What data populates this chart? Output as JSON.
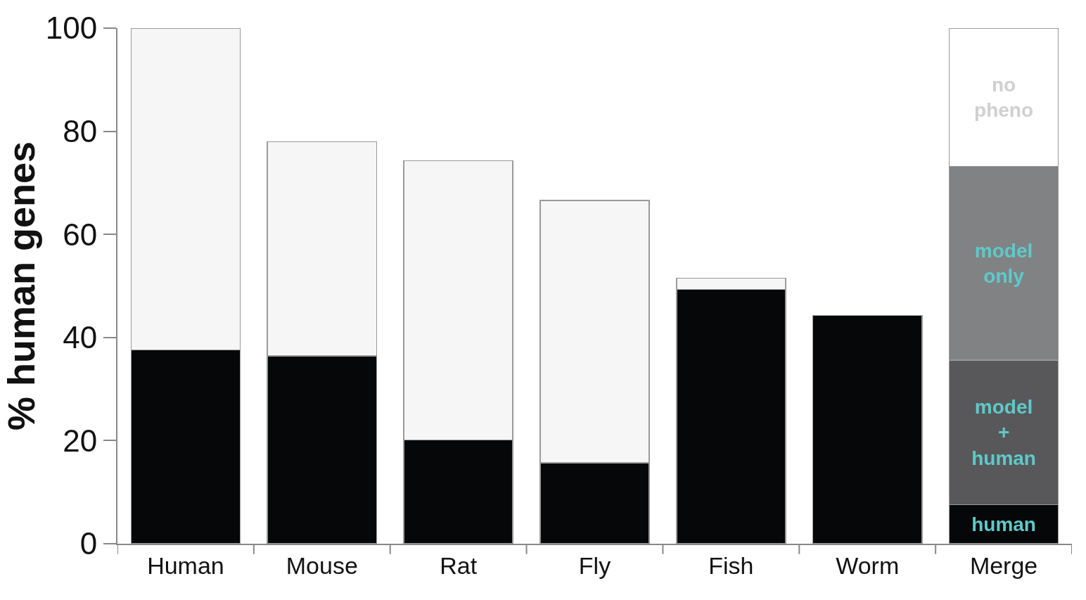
{
  "chart_data": {
    "type": "bar",
    "stacked": true,
    "ylabel": "% human genes",
    "categories": [
      "Human",
      "Mouse",
      "Rat",
      "Fly",
      "Fish",
      "Worm",
      "Merge"
    ],
    "series": [
      {
        "color": "#050708",
        "values": [
          37.6,
          36.4,
          20.1,
          15.7,
          49.3,
          44.3,
          null
        ]
      },
      {
        "color": "#f5f6f5",
        "values": [
          62.4,
          41.6,
          54.2,
          50.9,
          2.2,
          null,
          null
        ]
      },
      {
        "name": "human",
        "color": "#050708",
        "values": [
          null,
          null,
          null,
          null,
          null,
          null,
          7.6
        ]
      },
      {
        "name": "model + human",
        "color": "#58585a",
        "values": [
          null,
          null,
          null,
          null,
          null,
          null,
          28
        ]
      },
      {
        "name": "model only",
        "color": "#818284",
        "values": [
          null,
          null,
          null,
          null,
          null,
          null,
          37.6
        ]
      },
      {
        "name": "no pheno",
        "color": "#ffffff",
        "values": [
          null,
          null,
          null,
          null,
          null,
          null,
          26.8
        ]
      }
    ],
    "ylim": [
      0,
      100
    ],
    "yticks": [
      0,
      20,
      40,
      60,
      80,
      100
    ],
    "legend": false
  }
}
